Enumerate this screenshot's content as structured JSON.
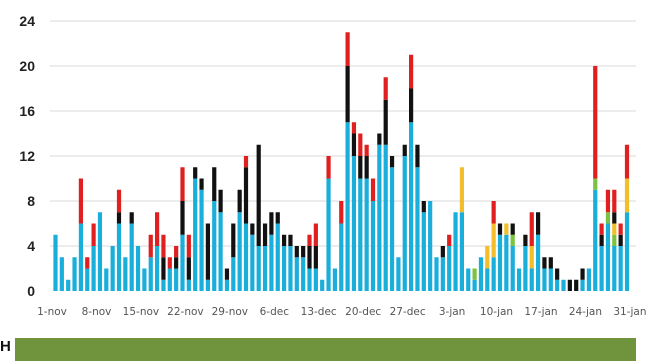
{
  "chart_data": {
    "type": "bar",
    "stacked": true,
    "grid": true,
    "ylim": [
      0,
      24
    ],
    "yticks": [
      "0",
      "4",
      "8",
      "12",
      "16",
      "20",
      "24"
    ],
    "xtick_labels": [
      "1-nov",
      "8-nov",
      "15-nov",
      "22-nov",
      "29-nov",
      "6-dec",
      "13-dec",
      "20-dec",
      "27-dec",
      "3-jan",
      "10-jan",
      "17-jan",
      "24-jan",
      "31-jan"
    ],
    "segment_colors": [
      "#1aaedb",
      "#7cc242",
      "#f2be2c",
      "#111111",
      "#e02020"
    ],
    "series": [
      {
        "values": [
          5,
          3,
          1,
          3,
          6,
          2,
          4,
          7,
          2,
          4,
          6,
          3,
          6,
          4,
          2,
          3,
          4,
          1,
          2,
          2,
          5,
          1,
          10,
          9,
          1,
          8,
          7,
          1,
          3,
          7,
          6,
          5,
          4,
          4,
          5,
          6,
          4,
          4,
          3,
          3,
          2,
          2,
          1,
          10,
          2,
          6,
          15,
          12,
          10,
          10,
          8,
          13,
          13,
          11,
          3,
          12,
          15,
          11,
          7,
          8,
          3,
          3,
          4,
          7,
          7,
          2,
          1,
          3,
          2,
          3,
          5,
          5,
          4,
          2,
          4,
          2,
          5,
          2,
          2,
          1,
          1,
          0,
          0,
          1,
          2,
          9,
          4,
          6,
          4,
          4,
          7
        ]
      },
      {
        "values": [
          0,
          0,
          0,
          0,
          0,
          0,
          0,
          0,
          0,
          0,
          0,
          0,
          0,
          0,
          0,
          0,
          0,
          0,
          0,
          0,
          0,
          0,
          0,
          0,
          0,
          0,
          0,
          0,
          0,
          0,
          0,
          0,
          0,
          0,
          0,
          0,
          0,
          0,
          0,
          0,
          0,
          0,
          0,
          0,
          0,
          0,
          0,
          0,
          0,
          0,
          0,
          0,
          0,
          0,
          0,
          0,
          0,
          0,
          0,
          0,
          0,
          0,
          0,
          0,
          0,
          0,
          1,
          0,
          0,
          0,
          0,
          0,
          1,
          0,
          0,
          0,
          0,
          0,
          0,
          0,
          0,
          0,
          0,
          0,
          0,
          1,
          0,
          1,
          1,
          0,
          0
        ]
      },
      {
        "values": [
          0,
          0,
          0,
          0,
          0,
          0,
          0,
          0,
          0,
          0,
          0,
          0,
          0,
          0,
          0,
          0,
          0,
          0,
          0,
          0,
          0,
          0,
          0,
          0,
          0,
          0,
          0,
          0,
          0,
          0,
          0,
          0,
          0,
          0,
          0,
          0,
          0,
          0,
          0,
          0,
          0,
          0,
          0,
          0,
          0,
          0,
          0,
          0,
          0,
          0,
          0,
          0,
          0,
          0,
          0,
          0,
          0,
          0,
          0,
          0,
          0,
          0,
          0,
          0,
          4,
          0,
          0,
          0,
          2,
          3,
          0,
          1,
          0,
          0,
          0,
          2,
          0,
          0,
          0,
          0,
          0,
          0,
          0,
          0,
          0,
          0,
          0,
          0,
          1,
          0,
          3
        ]
      },
      {
        "values": [
          0,
          0,
          0,
          0,
          0,
          0,
          0,
          0,
          0,
          0,
          1,
          0,
          1,
          0,
          0,
          0,
          0,
          2,
          0,
          1,
          3,
          2,
          1,
          1,
          5,
          3,
          2,
          1,
          3,
          2,
          5,
          1,
          9,
          2,
          2,
          1,
          1,
          1,
          1,
          1,
          2,
          2,
          0,
          0,
          0,
          0,
          5,
          2,
          2,
          2,
          0,
          1,
          4,
          1,
          0,
          1,
          3,
          2,
          1,
          0,
          0,
          1,
          0,
          0,
          0,
          0,
          0,
          0,
          0,
          0,
          1,
          0,
          1,
          0,
          1,
          0,
          2,
          1,
          1,
          1,
          0,
          1,
          1,
          1,
          0,
          0,
          1,
          0,
          1,
          1,
          0
        ]
      },
      {
        "values": [
          0,
          0,
          0,
          0,
          4,
          1,
          2,
          0,
          0,
          0,
          2,
          0,
          0,
          0,
          0,
          2,
          3,
          2,
          1,
          1,
          3,
          2,
          0,
          0,
          0,
          0,
          0,
          0,
          0,
          0,
          1,
          0,
          0,
          0,
          0,
          0,
          0,
          0,
          0,
          0,
          1,
          2,
          0,
          2,
          0,
          2,
          3,
          1,
          2,
          1,
          2,
          0,
          2,
          0,
          0,
          0,
          3,
          0,
          0,
          0,
          0,
          0,
          1,
          0,
          0,
          0,
          0,
          0,
          0,
          2,
          0,
          0,
          0,
          0,
          0,
          3,
          0,
          0,
          0,
          0,
          0,
          0,
          0,
          0,
          0,
          10,
          1,
          2,
          2,
          1,
          3
        ]
      }
    ]
  }
}
